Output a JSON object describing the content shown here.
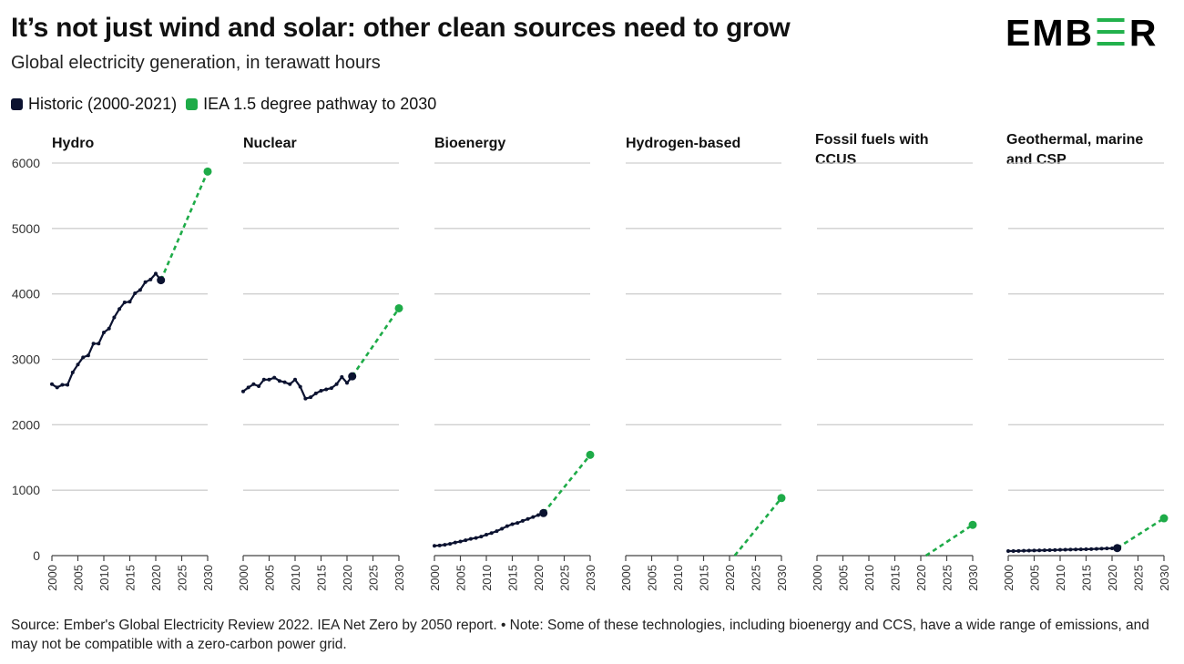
{
  "header": {
    "title": "It’s not just wind and solar: other clean sources need to grow",
    "subtitle": "Global electricity generation, in terawatt hours",
    "logo_text": "EMBER"
  },
  "legend": [
    {
      "label": "Historic (2000-2021)",
      "color": "#0b1230"
    },
    {
      "label": "IEA 1.5 degree pathway to 2030",
      "color": "#1eab48"
    }
  ],
  "footnote": "Source: Ember's Global Electricity Review 2022. IEA Net Zero by 2050 report. • Note: Some of these technologies, including bioenergy and CCS, have a wide range of emissions, and may not be compatible with a zero-carbon power grid.",
  "chart_data": {
    "type": "line",
    "layout": "small-multiples",
    "ylim": [
      0,
      6000
    ],
    "yticks": [
      0,
      1000,
      2000,
      3000,
      4000,
      5000,
      6000
    ],
    "xlim": [
      2000,
      2030
    ],
    "xticks": [
      "2000",
      "2005",
      "2010",
      "2015",
      "2020",
      "2025",
      "2030"
    ],
    "grid": true,
    "series_colors": {
      "historic": "#0b1230",
      "pathway": "#1eab48"
    },
    "panels": [
      {
        "name": "Hydro",
        "historic": {
          "x": [
            2000,
            2001,
            2002,
            2003,
            2004,
            2005,
            2006,
            2007,
            2008,
            2009,
            2010,
            2011,
            2012,
            2013,
            2014,
            2015,
            2016,
            2017,
            2018,
            2019,
            2020,
            2021
          ],
          "y": [
            2620,
            2570,
            2610,
            2610,
            2800,
            2920,
            3030,
            3060,
            3240,
            3240,
            3410,
            3470,
            3640,
            3770,
            3870,
            3880,
            4010,
            4060,
            4180,
            4220,
            4310,
            4210
          ]
        },
        "pathway": {
          "x": [
            2021,
            2030
          ],
          "y": [
            4210,
            5870
          ]
        }
      },
      {
        "name": "Nuclear",
        "historic": {
          "x": [
            2000,
            2001,
            2002,
            2003,
            2004,
            2005,
            2006,
            2007,
            2008,
            2009,
            2010,
            2011,
            2012,
            2013,
            2014,
            2015,
            2016,
            2017,
            2018,
            2019,
            2020,
            2021
          ],
          "y": [
            2510,
            2570,
            2620,
            2590,
            2690,
            2690,
            2720,
            2670,
            2650,
            2620,
            2690,
            2580,
            2400,
            2420,
            2480,
            2520,
            2540,
            2560,
            2620,
            2730,
            2640,
            2740
          ]
        },
        "pathway": {
          "x": [
            2021,
            2030
          ],
          "y": [
            2740,
            3780
          ]
        }
      },
      {
        "name": "Bioenergy",
        "historic": {
          "x": [
            2000,
            2001,
            2002,
            2003,
            2004,
            2005,
            2006,
            2007,
            2008,
            2009,
            2010,
            2011,
            2012,
            2013,
            2014,
            2015,
            2016,
            2017,
            2018,
            2019,
            2020,
            2021
          ],
          "y": [
            150,
            155,
            165,
            180,
            200,
            215,
            235,
            255,
            270,
            290,
            320,
            345,
            375,
            410,
            450,
            480,
            500,
            530,
            560,
            590,
            620,
            650
          ]
        },
        "pathway": {
          "x": [
            2021,
            2030
          ],
          "y": [
            650,
            1540
          ]
        }
      },
      {
        "name": "Hydrogen-based",
        "historic": {
          "x": [],
          "y": []
        },
        "pathway": {
          "x": [
            2021,
            2030
          ],
          "y": [
            0,
            880
          ]
        }
      },
      {
        "name": "Fossil fuels with CCUS",
        "historic": {
          "x": [],
          "y": []
        },
        "pathway": {
          "x": [
            2021,
            2030
          ],
          "y": [
            0,
            470
          ]
        }
      },
      {
        "name": "Geothermal, marine and CSP",
        "historic": {
          "x": [
            2000,
            2001,
            2002,
            2003,
            2004,
            2005,
            2006,
            2007,
            2008,
            2009,
            2010,
            2011,
            2012,
            2013,
            2014,
            2015,
            2016,
            2017,
            2018,
            2019,
            2020,
            2021
          ],
          "y": [
            70,
            70,
            72,
            74,
            76,
            78,
            80,
            82,
            84,
            86,
            88,
            90,
            92,
            94,
            96,
            98,
            100,
            103,
            106,
            110,
            112,
            115
          ]
        },
        "pathway": {
          "x": [
            2021,
            2030
          ],
          "y": [
            115,
            570
          ]
        }
      }
    ]
  }
}
